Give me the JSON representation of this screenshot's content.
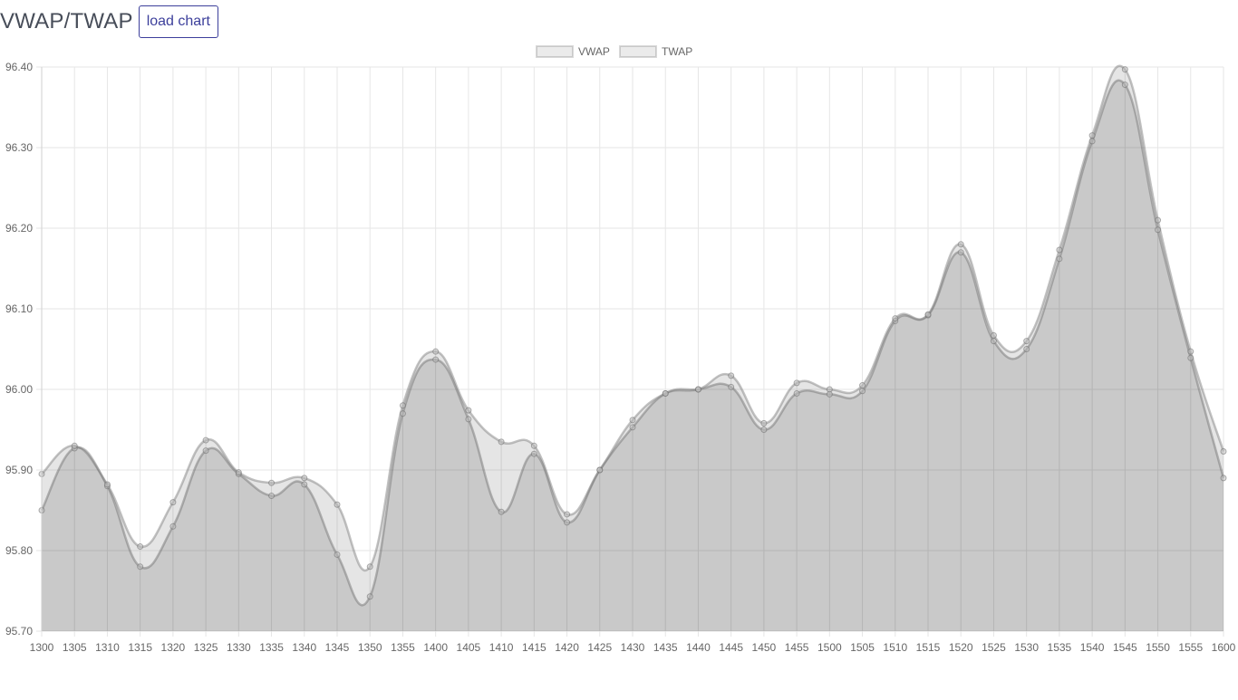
{
  "header": {
    "title": "VWAP/TWAP",
    "load_label": "load chart"
  },
  "colors": {
    "title": "#474d59",
    "button_border": "#3c3f9b",
    "grid": "#e6e6e6",
    "tick_text": "#666666",
    "vwap_fill": "rgba(0,0,0,0.12)",
    "twap_fill": "rgba(0,0,0,0.10)",
    "series_line": "rgba(120,120,120,0.45)",
    "point": "rgba(110,110,110,0.55)"
  },
  "chart_data": {
    "type": "area",
    "title": "",
    "xlabel": "",
    "ylabel": "",
    "categories": [
      "1300",
      "1305",
      "1310",
      "1315",
      "1320",
      "1325",
      "1330",
      "1335",
      "1340",
      "1345",
      "1350",
      "1355",
      "1400",
      "1405",
      "1410",
      "1415",
      "1420",
      "1425",
      "1430",
      "1435",
      "1440",
      "1445",
      "1450",
      "1455",
      "1500",
      "1505",
      "1510",
      "1515",
      "1520",
      "1525",
      "1530",
      "1535",
      "1540",
      "1545",
      "1550",
      "1555",
      "1600"
    ],
    "ylim": [
      95.7,
      96.4
    ],
    "yticks": [
      "96.40",
      "96.30",
      "96.20",
      "96.10",
      "96.00",
      "95.90",
      "95.80",
      "95.70"
    ],
    "grid": true,
    "legend_position": "top-center",
    "series": [
      {
        "name": "VWAP",
        "values": [
          95.85,
          95.927,
          95.88,
          95.78,
          95.83,
          95.924,
          95.895,
          95.868,
          95.882,
          95.795,
          95.743,
          95.97,
          96.037,
          95.963,
          95.848,
          95.92,
          95.835,
          95.9,
          95.953,
          95.995,
          96.0,
          96.003,
          95.95,
          95.995,
          95.994,
          95.998,
          96.085,
          96.092,
          96.17,
          96.06,
          96.05,
          96.162,
          96.308,
          96.378,
          96.198,
          96.039,
          95.89
        ]
      },
      {
        "name": "TWAP",
        "values": [
          95.895,
          95.93,
          95.882,
          95.805,
          95.86,
          95.937,
          95.897,
          95.884,
          95.89,
          95.857,
          95.78,
          95.98,
          96.047,
          95.974,
          95.935,
          95.93,
          95.845,
          95.9,
          95.962,
          95.995,
          96.0,
          96.017,
          95.958,
          96.008,
          96.0,
          96.005,
          96.088,
          96.093,
          96.18,
          96.067,
          96.06,
          96.173,
          96.315,
          96.397,
          96.21,
          96.047,
          95.923
        ]
      }
    ]
  }
}
